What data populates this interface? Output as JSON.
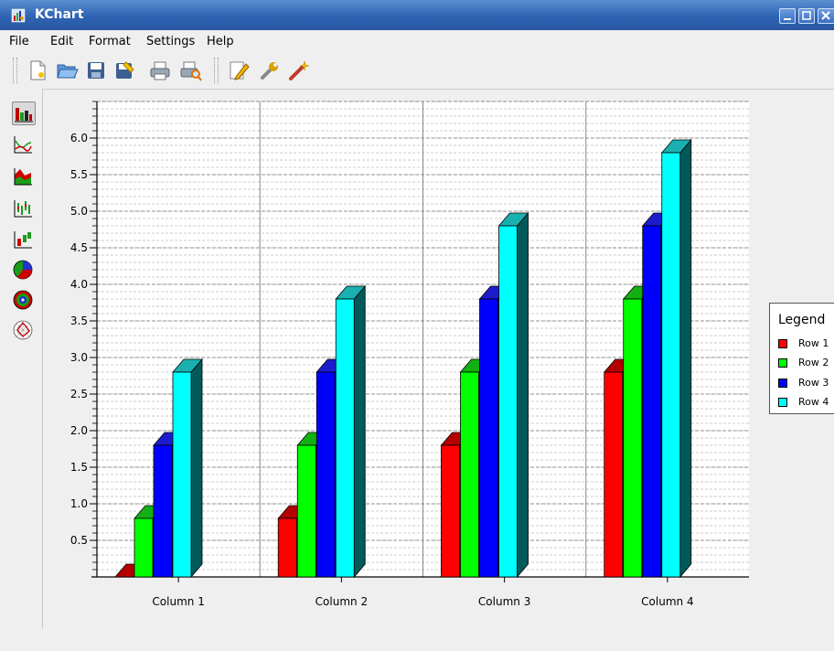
{
  "window": {
    "title": "KChart"
  },
  "menubar": {
    "items": [
      {
        "label": "File"
      },
      {
        "label": "Edit"
      },
      {
        "label": "Format"
      },
      {
        "label": "Settings"
      },
      {
        "label": "Help"
      }
    ]
  },
  "toolbar": {
    "buttons": [
      "new-icon",
      "open-icon",
      "save-icon",
      "save-as-icon",
      "print-icon",
      "print-preview-icon",
      "edit-icon",
      "configure-icon",
      "wizard-icon"
    ]
  },
  "sidebar": {
    "buttons": [
      "bar-chart-icon",
      "line-chart-icon",
      "area-chart-icon",
      "hilo-chart-icon",
      "box-whisker-icon",
      "pie-chart-icon",
      "ring-chart-icon",
      "polar-chart-icon"
    ],
    "active": "bar-chart-icon"
  },
  "colors": {
    "row1": "#ff0000",
    "row2": "#00ff00",
    "row3": "#0000ff",
    "row4": "#00ffff",
    "titlebar": "#2e63b3"
  },
  "chart_data": {
    "type": "bar",
    "style": "3d-grouped",
    "categories": [
      "Column 1",
      "Column 2",
      "Column 3",
      "Column 4"
    ],
    "series": [
      {
        "name": "Row 1",
        "values": [
          0,
          0.8,
          1.8,
          2.8
        ]
      },
      {
        "name": "Row 2",
        "values": [
          0.8,
          1.8,
          2.8,
          3.8
        ]
      },
      {
        "name": "Row 3",
        "values": [
          1.8,
          2.8,
          3.8,
          4.8
        ]
      },
      {
        "name": "Row 4",
        "values": [
          2.8,
          3.8,
          4.8,
          5.8
        ]
      }
    ],
    "y_ticks": [
      "0.5",
      "1.0",
      "1.5",
      "2.0",
      "2.5",
      "3.0",
      "3.5",
      "4.0",
      "4.5",
      "5.0",
      "5.5",
      "6.0"
    ],
    "ylim": [
      0,
      6.5
    ],
    "grid": true,
    "legend": {
      "title": "Legend",
      "position": "right"
    }
  }
}
